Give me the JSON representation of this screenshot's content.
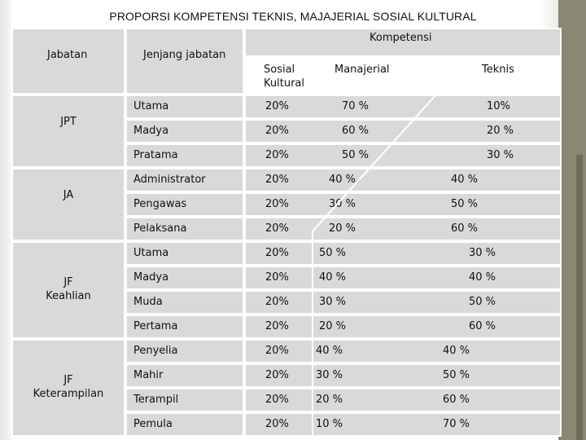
{
  "title": "PROPORSI KOMPETENSI TEKNIS, MAJAJERIAL SOSIAL KULTURAL",
  "headers": {
    "jabatan": "Jabatan",
    "jenjang": "Jenjang jabatan",
    "kompetensi": "Kompetensi",
    "sosial_line1": "Sosial",
    "sosial_line2": "Kultural",
    "manajerial": "Manajerial",
    "teknis": "Teknis"
  },
  "groups": [
    {
      "name_line1": "JPT",
      "name_line2": "",
      "rows": [
        {
          "jenjang": "Utama",
          "sosial": "20%",
          "manajerial": "70 %",
          "teknis": "10%"
        },
        {
          "jenjang": "Madya",
          "sosial": "20%",
          "manajerial": "60  %",
          "teknis": "20 %"
        },
        {
          "jenjang": "Pratama",
          "sosial": "20%",
          "manajerial": "50  %",
          "teknis": "30 %"
        }
      ]
    },
    {
      "name_line1": "JA",
      "name_line2": "",
      "rows": [
        {
          "jenjang": "Administrator",
          "sosial": "20%",
          "manajerial": "40 %",
          "teknis": "40 %"
        },
        {
          "jenjang": "Pengawas",
          "sosial": "20%",
          "manajerial": "30 %",
          "teknis": "50 %"
        },
        {
          "jenjang": "Pelaksana",
          "sosial": "20%",
          "manajerial": "20 %",
          "teknis": "60 %"
        }
      ]
    },
    {
      "name_line1": "JF",
      "name_line2": "Keahlian",
      "rows": [
        {
          "jenjang": "Utama",
          "sosial": "20%",
          "manajerial": "50 %",
          "teknis": "30 %"
        },
        {
          "jenjang": "Madya",
          "sosial": "20%",
          "manajerial": "40 %",
          "teknis": "40 %"
        },
        {
          "jenjang": "Muda",
          "sosial": "20%",
          "manajerial": "30 %",
          "teknis": "50 %"
        },
        {
          "jenjang": "Pertama",
          "sosial": "20%",
          "manajerial": "20 %",
          "teknis": "60 %"
        }
      ]
    },
    {
      "name_line1": "JF",
      "name_line2": "Keterampilan",
      "rows": [
        {
          "jenjang": "Penyelia",
          "sosial": "20%",
          "manajerial": "40 %",
          "teknis": "40 %"
        },
        {
          "jenjang": "Mahir",
          "sosial": "20%",
          "manajerial": "30 %",
          "teknis": "50 %"
        },
        {
          "jenjang": "Terampil",
          "sosial": "20%",
          "manajerial": "20 %",
          "teknis": "60 %"
        },
        {
          "jenjang": "Pemula",
          "sosial": "20%",
          "manajerial": "10 %",
          "teknis": "70 %"
        }
      ]
    }
  ]
}
